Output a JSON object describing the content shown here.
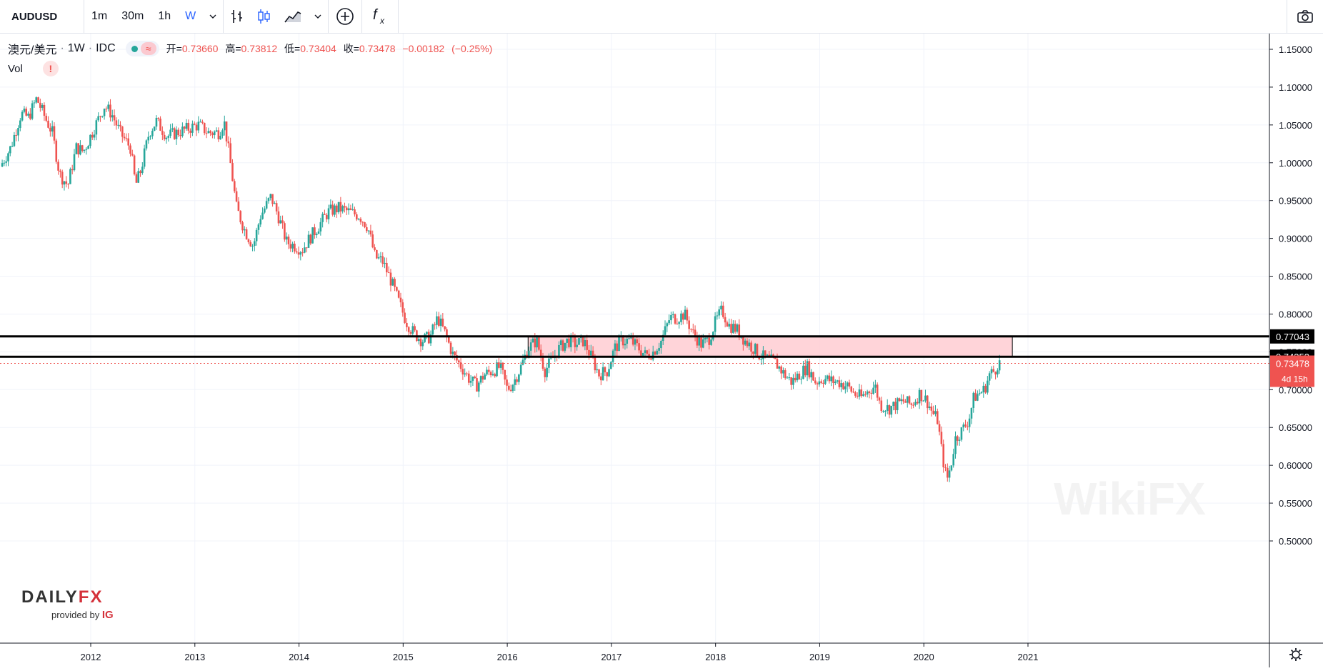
{
  "toolbar": {
    "symbol": "AUDUSD",
    "intervals": [
      {
        "label": "1m",
        "active": false
      },
      {
        "label": "30m",
        "active": false
      },
      {
        "label": "1h",
        "active": false
      },
      {
        "label": "W",
        "active": true
      }
    ],
    "icons": [
      "chevron-down-icon",
      "bar-style-icon",
      "candle-style-icon",
      "area-style-icon",
      "chevron-down-icon",
      "add-compare-icon",
      "indicators-fx-icon",
      "camera-icon"
    ]
  },
  "legend": {
    "name": "澳元/美元",
    "interval": "1W",
    "source": "IDC",
    "open_label": "开=",
    "open": "0.73660",
    "high_label": "高=",
    "high": "0.73812",
    "low_label": "低=",
    "low": "0.73404",
    "close_label": "收=",
    "close": "0.73478",
    "change": "−0.00182",
    "change_pct": "(−0.25%)",
    "volume_label": "Vol",
    "volume_warning": "!"
  },
  "price_tags": {
    "upper": "0.77043",
    "lower": "0.74353",
    "last": "0.73478",
    "countdown": "4d 15h"
  },
  "logo": {
    "main_left": "DAILY",
    "main_right": "FX",
    "sub": "provided by",
    "sub_brand": "IG"
  },
  "watermark": "WikiFX",
  "colors": {
    "up": "#26a69a",
    "down": "#ef5350",
    "zone_fill": "#ffcdd2",
    "line": "#000000",
    "grid": "#f0f3fa"
  },
  "chart_data": {
    "type": "candlestick",
    "symbol": "AUDUSD",
    "interval": "1W",
    "y_axis_ticks": [
      "1.15000",
      "1.10000",
      "1.05000",
      "1.00000",
      "0.95000",
      "0.90000",
      "0.85000",
      "0.80000",
      "0.75000",
      "0.70000",
      "0.65000",
      "0.60000",
      "0.55000",
      "0.50000"
    ],
    "x_axis_ticks": [
      "2012",
      "2013",
      "2014",
      "2015",
      "2016",
      "2017",
      "2018",
      "2019",
      "2020",
      "2021"
    ],
    "ylim": [
      0.495,
      1.175
    ],
    "xlim": [
      2011.15,
      2021.55
    ],
    "grid": true,
    "horizontal_lines": [
      0.77043,
      0.74353
    ],
    "zone": {
      "x_start": 2016.2,
      "x_end": 2020.85,
      "y_low": 0.74353,
      "y_high": 0.77043
    },
    "last_price": 0.73478,
    "price_path": [
      [
        2011.15,
        0.995
      ],
      [
        2011.25,
        1.02
      ],
      [
        2011.35,
        1.065
      ],
      [
        2011.42,
        1.06
      ],
      [
        2011.5,
        1.085
      ],
      [
        2011.58,
        1.06
      ],
      [
        2011.65,
        1.04
      ],
      [
        2011.72,
        0.985
      ],
      [
        2011.8,
        0.97
      ],
      [
        2011.88,
        1.02
      ],
      [
        2011.95,
        1.015
      ],
      [
        2012.05,
        1.045
      ],
      [
        2012.15,
        1.075
      ],
      [
        2012.22,
        1.065
      ],
      [
        2012.3,
        1.04
      ],
      [
        2012.4,
        1.02
      ],
      [
        2012.45,
        0.97
      ],
      [
        2012.5,
        0.99
      ],
      [
        2012.58,
        1.04
      ],
      [
        2012.65,
        1.055
      ],
      [
        2012.75,
        1.035
      ],
      [
        2012.85,
        1.04
      ],
      [
        2012.95,
        1.045
      ],
      [
        2013.05,
        1.05
      ],
      [
        2013.15,
        1.04
      ],
      [
        2013.25,
        1.04
      ],
      [
        2013.3,
        1.055
      ],
      [
        2013.35,
        1.01
      ],
      [
        2013.42,
        0.94
      ],
      [
        2013.5,
        0.91
      ],
      [
        2013.58,
        0.89
      ],
      [
        2013.65,
        0.93
      ],
      [
        2013.75,
        0.955
      ],
      [
        2013.82,
        0.93
      ],
      [
        2013.9,
        0.895
      ],
      [
        2013.98,
        0.89
      ],
      [
        2014.05,
        0.885
      ],
      [
        2014.12,
        0.9
      ],
      [
        2014.2,
        0.915
      ],
      [
        2014.3,
        0.935
      ],
      [
        2014.4,
        0.94
      ],
      [
        2014.5,
        0.935
      ],
      [
        2014.6,
        0.93
      ],
      [
        2014.68,
        0.915
      ],
      [
        2014.75,
        0.875
      ],
      [
        2014.82,
        0.87
      ],
      [
        2014.9,
        0.845
      ],
      [
        2014.98,
        0.815
      ],
      [
        2015.05,
        0.79
      ],
      [
        2015.12,
        0.775
      ],
      [
        2015.2,
        0.765
      ],
      [
        2015.28,
        0.77
      ],
      [
        2015.35,
        0.795
      ],
      [
        2015.42,
        0.775
      ],
      [
        2015.5,
        0.745
      ],
      [
        2015.58,
        0.73
      ],
      [
        2015.65,
        0.715
      ],
      [
        2015.72,
        0.705
      ],
      [
        2015.8,
        0.72
      ],
      [
        2015.88,
        0.725
      ],
      [
        2015.95,
        0.73
      ],
      [
        2016.02,
        0.7
      ],
      [
        2016.08,
        0.71
      ],
      [
        2016.15,
        0.73
      ],
      [
        2016.22,
        0.755
      ],
      [
        2016.3,
        0.765
      ],
      [
        2016.38,
        0.725
      ],
      [
        2016.45,
        0.74
      ],
      [
        2016.52,
        0.755
      ],
      [
        2016.6,
        0.765
      ],
      [
        2016.68,
        0.76
      ],
      [
        2016.75,
        0.765
      ],
      [
        2016.82,
        0.745
      ],
      [
        2016.9,
        0.72
      ],
      [
        2016.98,
        0.725
      ],
      [
        2017.05,
        0.755
      ],
      [
        2017.12,
        0.765
      ],
      [
        2017.2,
        0.765
      ],
      [
        2017.28,
        0.755
      ],
      [
        2017.35,
        0.745
      ],
      [
        2017.42,
        0.75
      ],
      [
        2017.5,
        0.765
      ],
      [
        2017.58,
        0.795
      ],
      [
        2017.65,
        0.795
      ],
      [
        2017.72,
        0.8
      ],
      [
        2017.8,
        0.775
      ],
      [
        2017.88,
        0.76
      ],
      [
        2017.95,
        0.765
      ],
      [
        2018.02,
        0.79
      ],
      [
        2018.08,
        0.805
      ],
      [
        2018.15,
        0.785
      ],
      [
        2018.22,
        0.78
      ],
      [
        2018.3,
        0.765
      ],
      [
        2018.38,
        0.755
      ],
      [
        2018.45,
        0.745
      ],
      [
        2018.52,
        0.74
      ],
      [
        2018.6,
        0.735
      ],
      [
        2018.68,
        0.72
      ],
      [
        2018.75,
        0.71
      ],
      [
        2018.82,
        0.72
      ],
      [
        2018.9,
        0.73
      ],
      [
        2018.98,
        0.71
      ],
      [
        2019.05,
        0.715
      ],
      [
        2019.12,
        0.712
      ],
      [
        2019.2,
        0.71
      ],
      [
        2019.28,
        0.705
      ],
      [
        2019.35,
        0.695
      ],
      [
        2019.42,
        0.69
      ],
      [
        2019.5,
        0.7
      ],
      [
        2019.55,
        0.705
      ],
      [
        2019.6,
        0.68
      ],
      [
        2019.68,
        0.675
      ],
      [
        2019.75,
        0.68
      ],
      [
        2019.82,
        0.685
      ],
      [
        2019.9,
        0.68
      ],
      [
        2019.98,
        0.695
      ],
      [
        2020.05,
        0.685
      ],
      [
        2020.1,
        0.67
      ],
      [
        2020.15,
        0.66
      ],
      [
        2020.2,
        0.61
      ],
      [
        2020.24,
        0.58
      ],
      [
        2020.28,
        0.6
      ],
      [
        2020.32,
        0.635
      ],
      [
        2020.38,
        0.645
      ],
      [
        2020.45,
        0.66
      ],
      [
        2020.5,
        0.69
      ],
      [
        2020.55,
        0.695
      ],
      [
        2020.6,
        0.7
      ],
      [
        2020.65,
        0.72
      ],
      [
        2020.7,
        0.725
      ],
      [
        2020.73,
        0.735
      ]
    ]
  }
}
